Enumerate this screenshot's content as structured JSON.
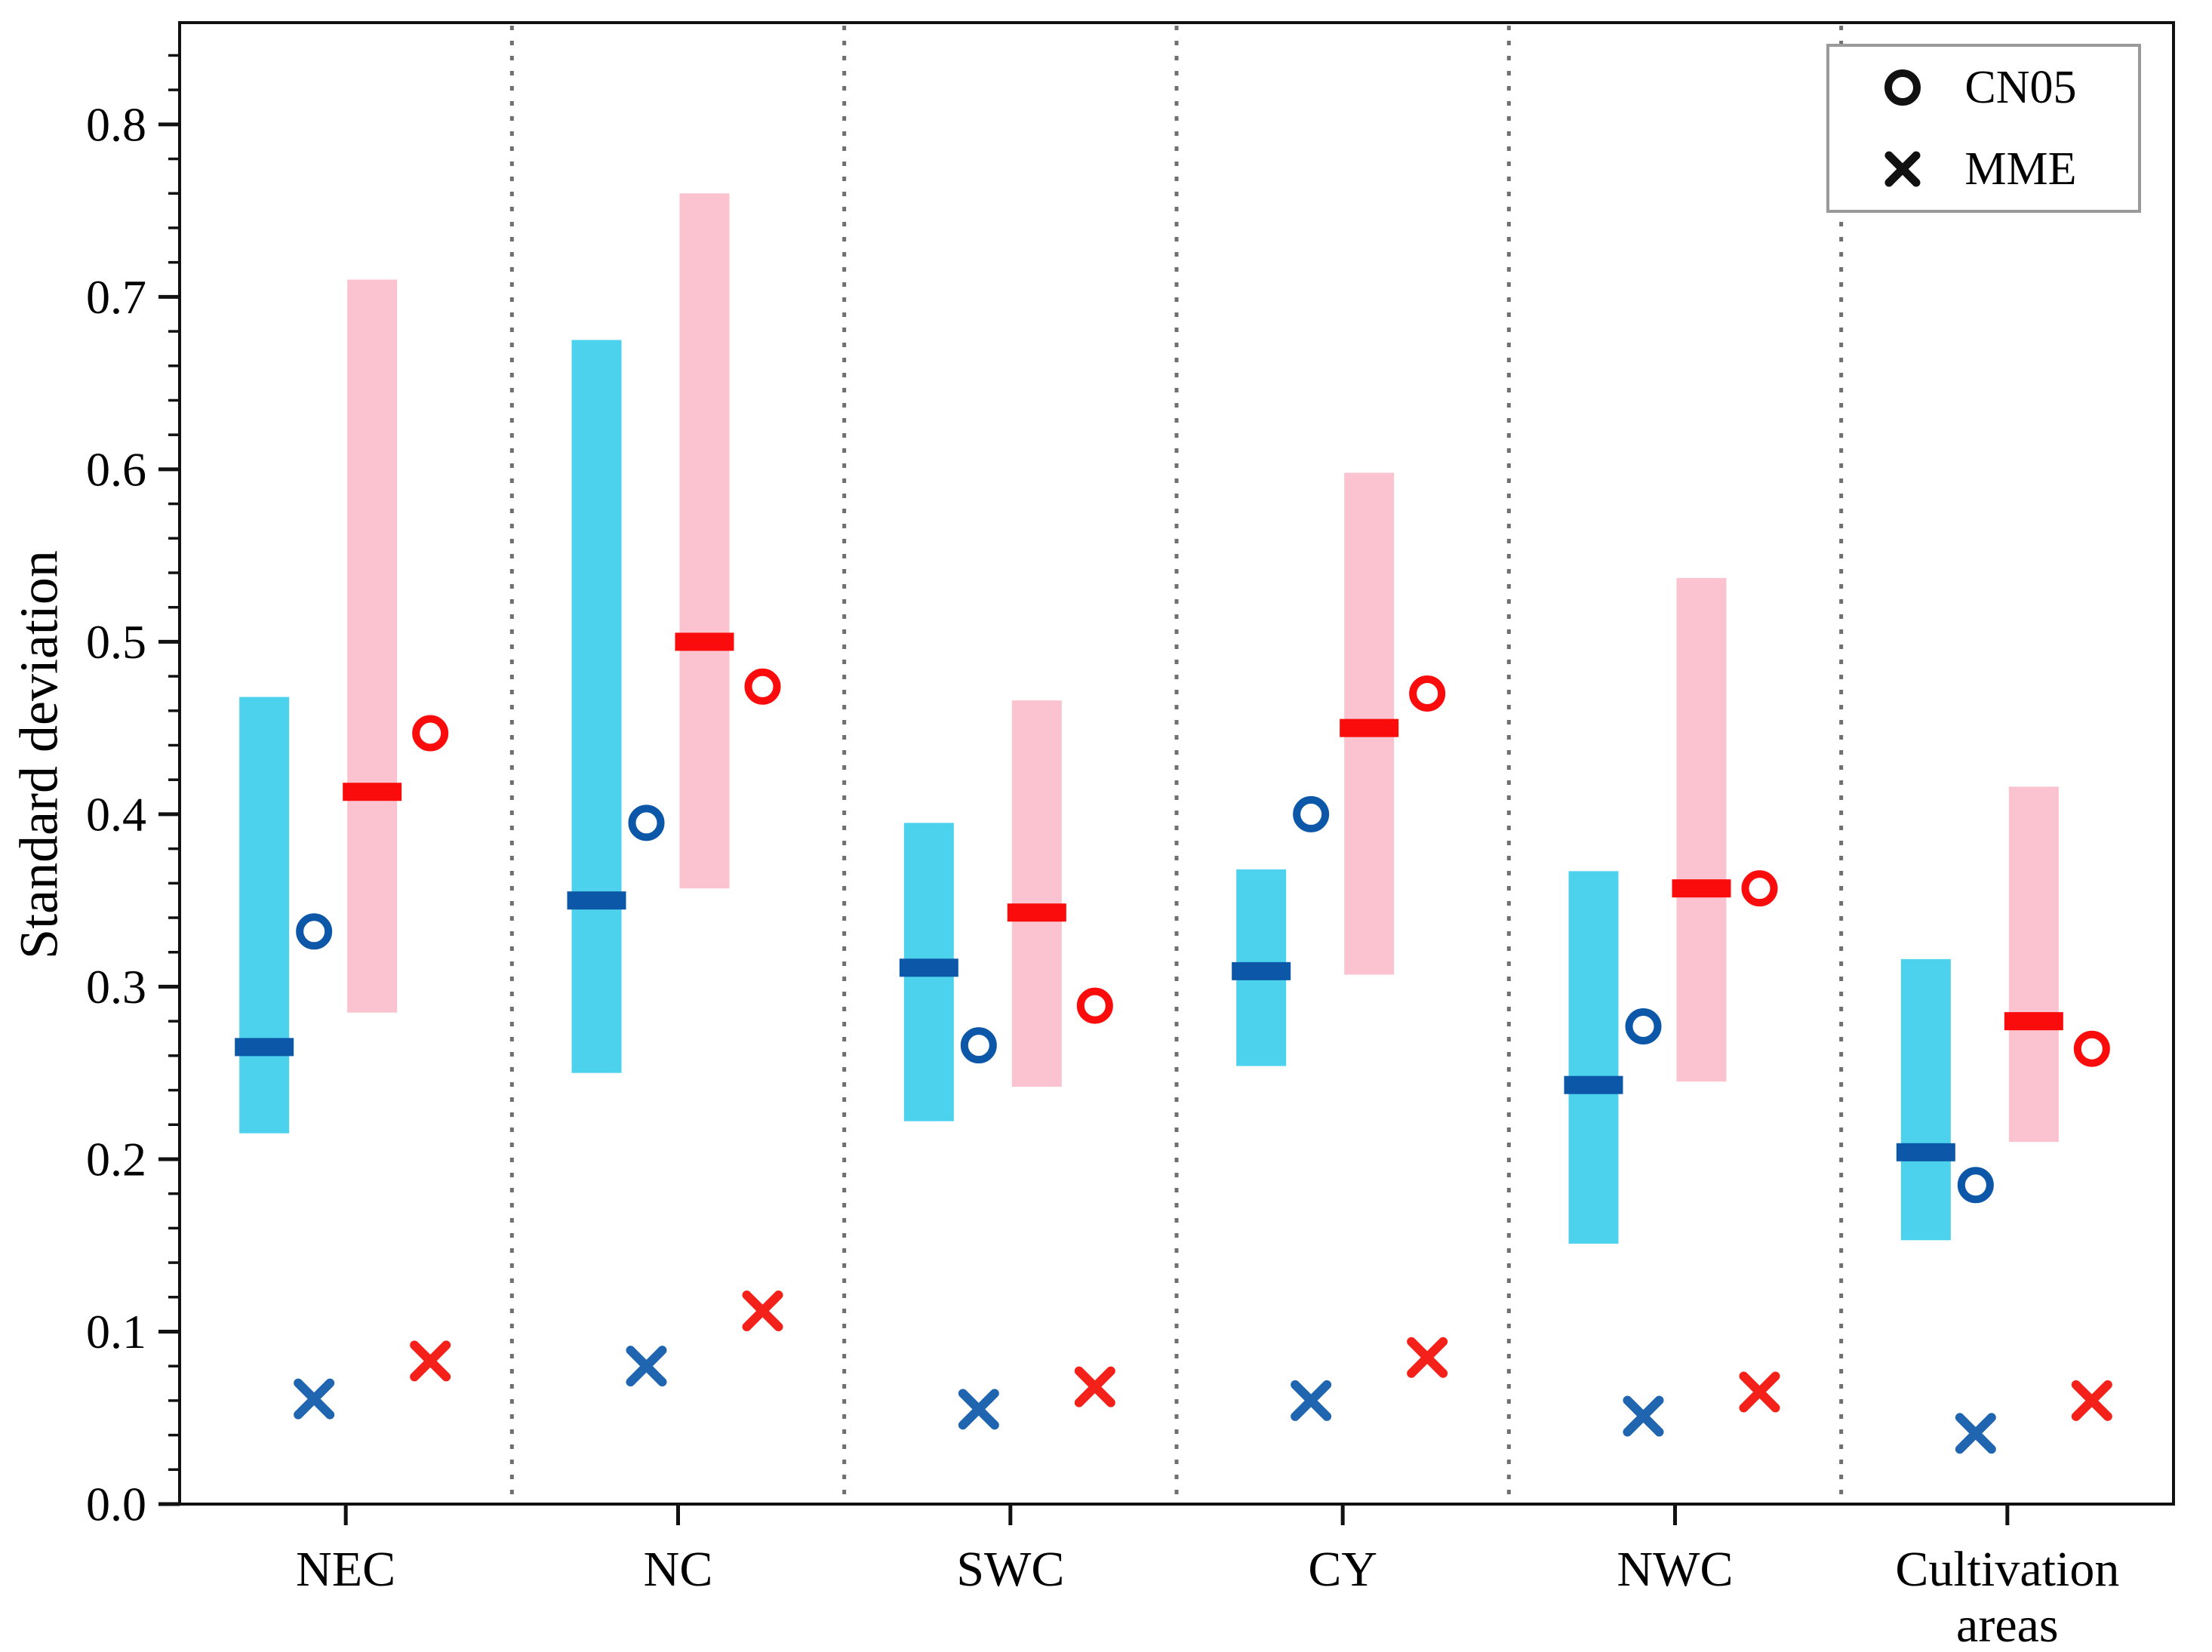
{
  "chart_data": {
    "type": "bar",
    "subtype": "range-bars-with-markers",
    "title": "",
    "xlabel": "",
    "ylabel": "Standard deviation",
    "categories": [
      "NEC",
      "NC",
      "SWC",
      "CY",
      "NWC",
      "Cultivation areas"
    ],
    "category_label_lines": [
      [
        "NEC"
      ],
      [
        "NC"
      ],
      [
        "SWC"
      ],
      [
        "CY"
      ],
      [
        "NWC"
      ],
      [
        "Cultivation",
        "areas"
      ]
    ],
    "ylim": [
      0,
      0.859
    ],
    "ytick_labels": [
      "0.0",
      "0.1",
      "0.2",
      "0.3",
      "0.4",
      "0.5",
      "0.6",
      "0.7",
      "0.8"
    ],
    "ytick_step": 0.1,
    "yminor_step": 0.02,
    "grid": false,
    "separators_between_categories": true,
    "legend": {
      "position": "upper-right",
      "entries": [
        {
          "marker": "circle",
          "label": "CN05"
        },
        {
          "marker": "x",
          "label": "MME"
        }
      ]
    },
    "colors": {
      "blue_band": "#4dd2ed",
      "blue_accent": "#0d57a8",
      "blue_x": "#2065b0",
      "red_band": "#fac3cf",
      "red_accent": "#fb0c0c",
      "red_x": "#f4211a",
      "frame": "#111111",
      "separator": "#6f6f6f",
      "legend_marker": "#111111"
    },
    "series": [
      {
        "name": "blue-model-range",
        "group": "blue",
        "role": "range",
        "values": [
          [
            0.215,
            0.468
          ],
          [
            0.25,
            0.675
          ],
          [
            0.222,
            0.395
          ],
          [
            0.254,
            0.368
          ],
          [
            0.151,
            0.367
          ],
          [
            0.153,
            0.316
          ]
        ]
      },
      {
        "name": "blue-model-median",
        "group": "blue",
        "role": "median",
        "values": [
          0.265,
          0.35,
          0.311,
          0.309,
          0.243,
          0.204
        ]
      },
      {
        "name": "blue-CN05",
        "group": "blue",
        "role": "circle",
        "values": [
          0.332,
          0.395,
          0.266,
          0.4,
          0.277,
          0.185
        ]
      },
      {
        "name": "blue-MME",
        "group": "blue",
        "role": "x",
        "values": [
          0.061,
          0.08,
          0.055,
          0.06,
          0.051,
          0.041
        ]
      },
      {
        "name": "red-model-range",
        "group": "red",
        "role": "range",
        "values": [
          [
            0.285,
            0.71
          ],
          [
            0.357,
            0.76
          ],
          [
            0.242,
            0.466
          ],
          [
            0.307,
            0.598
          ],
          [
            0.245,
            0.537
          ],
          [
            0.21,
            0.416
          ]
        ]
      },
      {
        "name": "red-model-median",
        "group": "red",
        "role": "median",
        "values": [
          0.413,
          0.5,
          0.343,
          0.45,
          0.357,
          0.28
        ]
      },
      {
        "name": "red-CN05",
        "group": "red",
        "role": "circle",
        "values": [
          0.447,
          0.474,
          0.289,
          0.47,
          0.357,
          0.264
        ]
      },
      {
        "name": "red-MME",
        "group": "red",
        "role": "x",
        "values": [
          0.083,
          0.112,
          0.068,
          0.085,
          0.065,
          0.06
        ]
      }
    ]
  }
}
